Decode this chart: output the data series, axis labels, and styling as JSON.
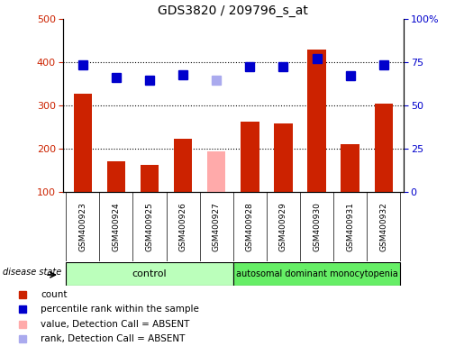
{
  "title": "GDS3820 / 209796_s_at",
  "samples": [
    "GSM400923",
    "GSM400924",
    "GSM400925",
    "GSM400926",
    "GSM400927",
    "GSM400928",
    "GSM400929",
    "GSM400930",
    "GSM400931",
    "GSM400932"
  ],
  "count_values": [
    328,
    172,
    163,
    224,
    195,
    263,
    258,
    430,
    210,
    305
  ],
  "rank_values": [
    395,
    365,
    358,
    372,
    358,
    390,
    390,
    408,
    370,
    393
  ],
  "absent_mask": [
    false,
    false,
    false,
    false,
    true,
    false,
    false,
    false,
    false,
    false
  ],
  "n_control": 5,
  "n_disease": 5,
  "control_label": "control",
  "disease_label": "autosomal dominant monocytopenia",
  "disease_state_label": "disease state",
  "bar_color_present": "#cc2200",
  "bar_color_absent": "#ffaaaa",
  "rank_color_present": "#0000cc",
  "rank_color_absent": "#aaaaee",
  "left_ylim": [
    100,
    500
  ],
  "right_ylim": [
    0,
    100
  ],
  "left_yticks": [
    100,
    200,
    300,
    400,
    500
  ],
  "right_yticks": [
    0,
    25,
    50,
    75,
    100
  ],
  "right_yticklabels": [
    "0",
    "25",
    "50",
    "75",
    "100%"
  ],
  "grid_values": [
    200,
    300,
    400
  ],
  "bar_width": 0.55,
  "rank_marker_size": 7,
  "control_color": "#bbffbb",
  "disease_color": "#66ee66",
  "ticklabel_bg": "#cccccc",
  "legend_items": [
    {
      "label": "count",
      "color": "#cc2200"
    },
    {
      "label": "percentile rank within the sample",
      "color": "#0000cc"
    },
    {
      "label": "value, Detection Call = ABSENT",
      "color": "#ffaaaa"
    },
    {
      "label": "rank, Detection Call = ABSENT",
      "color": "#aaaaee"
    }
  ]
}
